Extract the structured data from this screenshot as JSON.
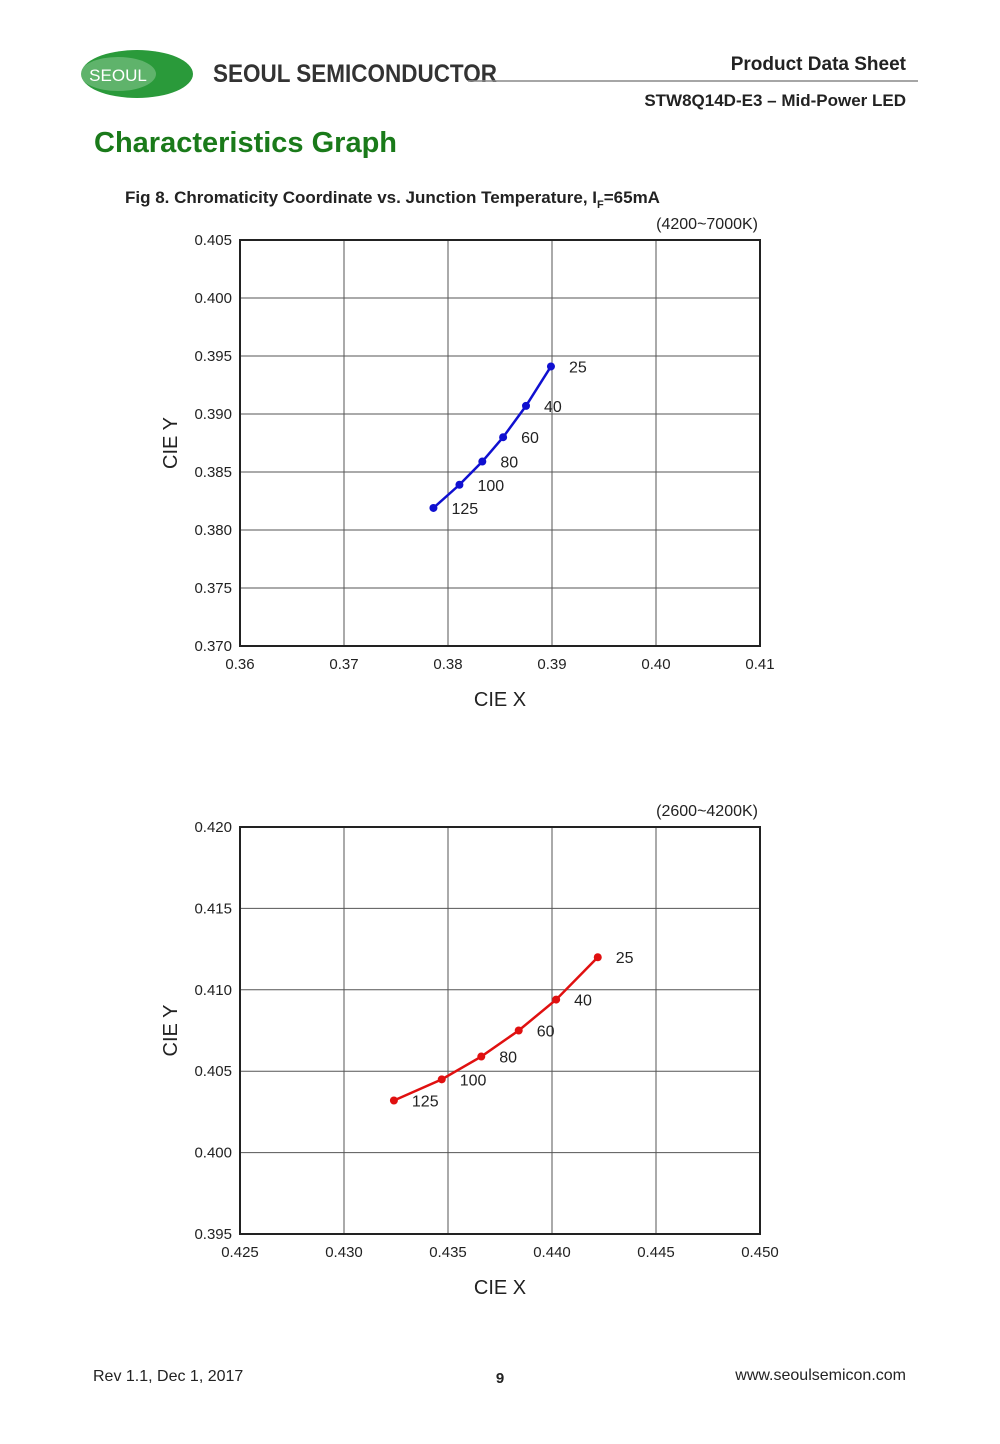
{
  "header": {
    "logo": "SEOUL",
    "company": "SEOUL SEMICONDUCTOR",
    "doc_type": "Product Data Sheet",
    "product": "STW8Q14D-E3 – Mid-Power LED"
  },
  "section_title": "Characteristics Graph",
  "figure_caption": {
    "text": "Fig 8. Chromaticity Coordinate vs. Junction Temperature,  I",
    "subscript": "F",
    "suffix": "=65mA"
  },
  "chart_data": [
    {
      "type": "line",
      "subtitle": "(4200~7000K)",
      "x_label": "CIE X",
      "y_label": "CIE Y",
      "color": "#1010d0",
      "grid": true,
      "x": [
        0.3899,
        0.3875,
        0.3853,
        0.3833,
        0.3811,
        0.3786
      ],
      "values": [
        0.3941,
        0.3907,
        0.388,
        0.3859,
        0.3839,
        0.3819
      ],
      "point_labels": [
        "25",
        "40",
        "60",
        "80",
        "100",
        "125"
      ],
      "xlim": [
        0.36,
        0.41
      ],
      "xticks": [
        0.36,
        0.37,
        0.38,
        0.39,
        {
          "value": 0.4,
          "label": "0.40"
        },
        0.41
      ],
      "ylim": [
        0.37,
        0.405
      ],
      "yticks": [
        {
          "value": 0.37,
          "label": "0.370"
        },
        0.375,
        {
          "value": 0.38,
          "label": "0.380"
        },
        0.385,
        {
          "value": 0.39,
          "label": "0.390"
        },
        0.395,
        {
          "value": 0.4,
          "label": "0.400"
        },
        0.405
      ]
    },
    {
      "type": "line",
      "subtitle": "(2600~4200K)",
      "x_label": "CIE X",
      "y_label": "CIE Y",
      "color": "#e01010",
      "grid": true,
      "x": [
        0.4422,
        0.4402,
        0.4384,
        0.4366,
        0.4347,
        0.4324
      ],
      "values": [
        0.412,
        0.4094,
        0.4075,
        0.4059,
        0.4045,
        0.4032
      ],
      "point_labels": [
        "25",
        "40",
        "60",
        "80",
        "100",
        "125"
      ],
      "xlim": [
        0.425,
        0.45
      ],
      "xticks": [
        0.425,
        {
          "value": 0.43,
          "label": "0.430"
        },
        0.435,
        {
          "value": 0.44,
          "label": "0.440"
        },
        0.445,
        {
          "value": 0.45,
          "label": "0.450"
        }
      ],
      "ylim": [
        0.395,
        0.42
      ],
      "yticks": [
        0.395,
        {
          "value": 0.4,
          "label": "0.400"
        },
        0.405,
        {
          "value": 0.41,
          "label": "0.410"
        },
        0.415,
        {
          "value": 0.42,
          "label": "0.420"
        }
      ]
    }
  ],
  "footer": {
    "revision": "Rev 1.1, Dec 1, 2017",
    "page": "9",
    "website": "www.seoulsemicon.com"
  }
}
